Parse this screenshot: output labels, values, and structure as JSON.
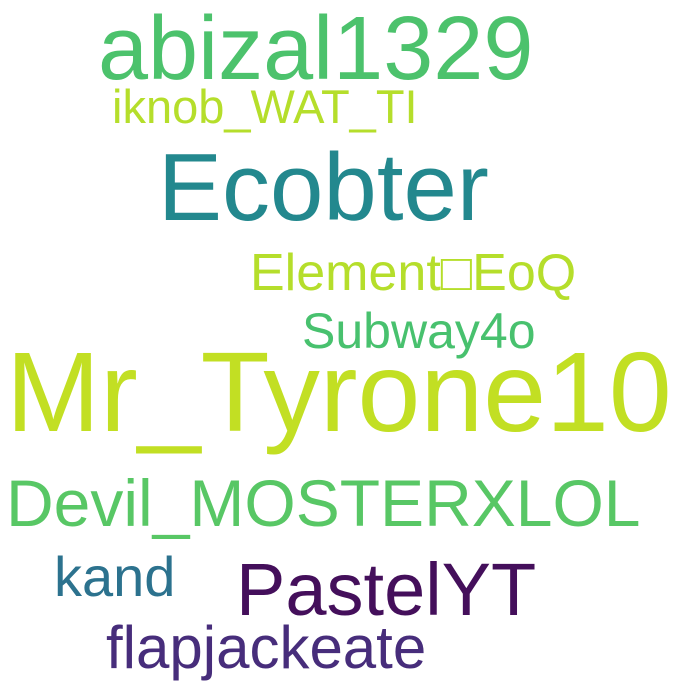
{
  "words": [
    {
      "text": "abizal1329",
      "color": "#4cc26c"
    },
    {
      "text": "iknob_WAT_TI",
      "color": "#b5de2b"
    },
    {
      "text": "Ecobter",
      "color": "#23888e"
    },
    {
      "text": "Element□EoQ",
      "color": "#b5de2b"
    },
    {
      "text": "Subway4o",
      "color": "#48c16e"
    },
    {
      "text": "Mr_Tyrone10",
      "color": "#c2df23"
    },
    {
      "text": "Devil_MOSTERXLOL",
      "color": "#58c765"
    },
    {
      "text": "kand",
      "color": "#2c728e"
    },
    {
      "text": "PastelYT",
      "color": "#440f5b"
    },
    {
      "text": "flapjackeate",
      "color": "#472d7b"
    }
  ]
}
